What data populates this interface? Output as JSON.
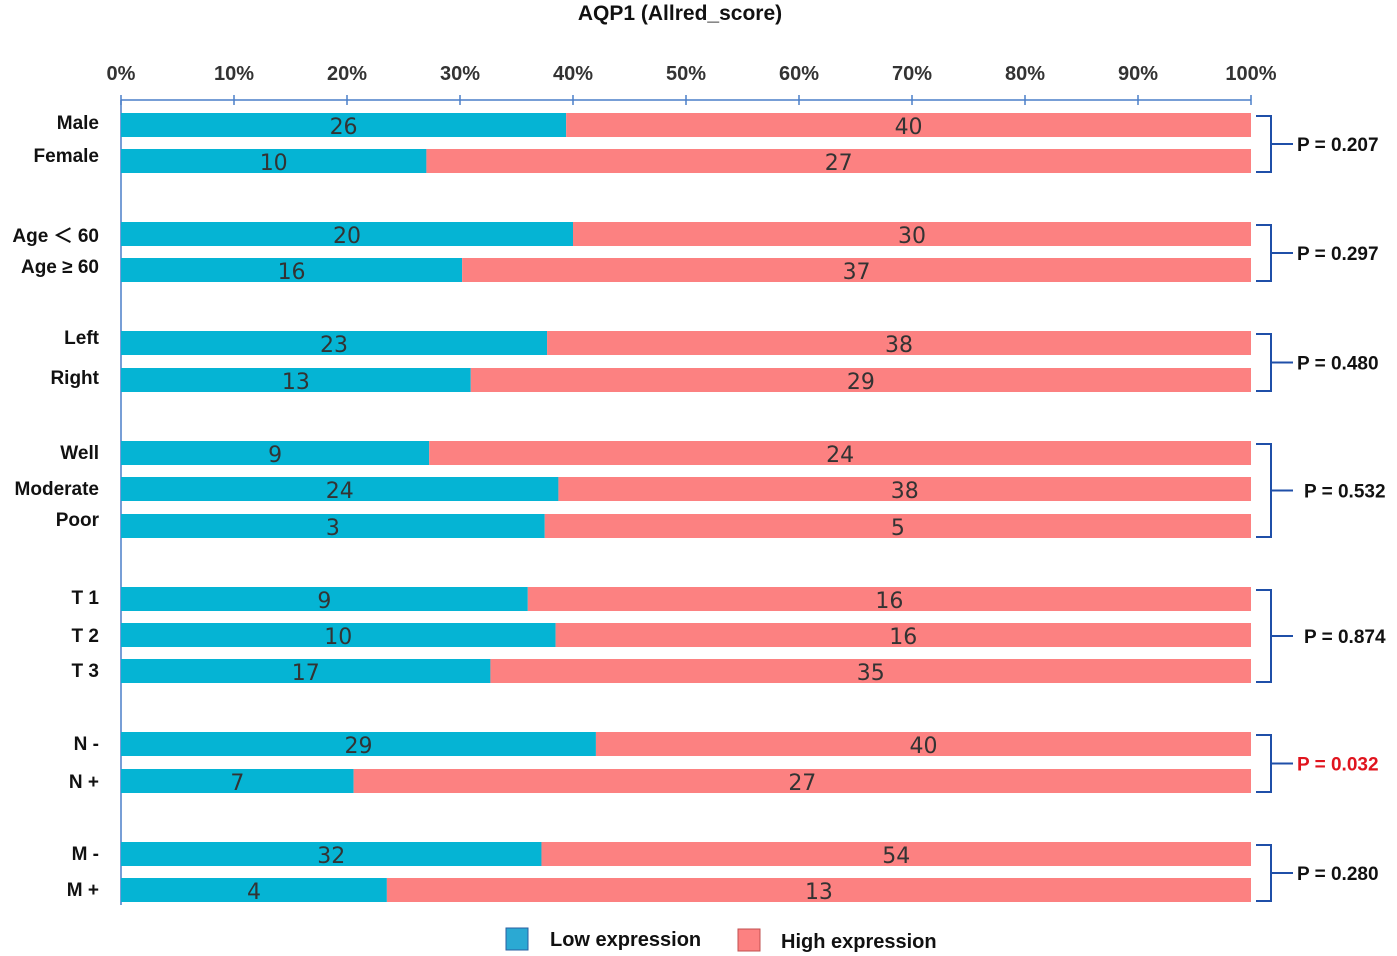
{
  "chart_data": {
    "type": "bar",
    "orientation": "horizontal",
    "stacked": "percent",
    "title": "AQP1 (Allred_score)",
    "x_ticks": [
      "0%",
      "10%",
      "20%",
      "30%",
      "40%",
      "50%",
      "60%",
      "70%",
      "80%",
      "90%",
      "100%"
    ],
    "xlim": [
      0,
      100
    ],
    "series": [
      {
        "name": "Low expression",
        "color": "#05b4d4"
      },
      {
        "name": "High expression",
        "color": "#fc8181"
      }
    ],
    "groups": [
      {
        "p_value": "P = 0.207",
        "significant": false,
        "rows": [
          {
            "label": "Male",
            "low": 26,
            "high": 40
          },
          {
            "label": "Female",
            "low": 10,
            "high": 27
          }
        ]
      },
      {
        "p_value": "P = 0.297",
        "significant": false,
        "rows": [
          {
            "label": "Age ＜ 60",
            "low": 20,
            "high": 30
          },
          {
            "label": "Age ≥ 60",
            "low": 16,
            "high": 37
          }
        ]
      },
      {
        "p_value": "P = 0.480",
        "significant": false,
        "rows": [
          {
            "label": "Left",
            "low": 23,
            "high": 38
          },
          {
            "label": "Right",
            "low": 13,
            "high": 29
          }
        ]
      },
      {
        "p_value": "P = 0.532",
        "significant": false,
        "rows": [
          {
            "label": "Well",
            "low": 9,
            "high": 24
          },
          {
            "label": "Moderate",
            "low": 24,
            "high": 38
          },
          {
            "label": "Poor",
            "low": 3,
            "high": 5
          }
        ]
      },
      {
        "p_value": "P = 0.874",
        "significant": false,
        "rows": [
          {
            "label": "T 1",
            "low": 9,
            "high": 16
          },
          {
            "label": "T 2",
            "low": 10,
            "high": 16
          },
          {
            "label": "T 3",
            "low": 17,
            "high": 35
          }
        ]
      },
      {
        "p_value": "P = 0.032",
        "significant": true,
        "rows": [
          {
            "label": "N -",
            "low": 29,
            "high": 40
          },
          {
            "label": "N +",
            "low": 7,
            "high": 27
          }
        ]
      },
      {
        "p_value": "P = 0.280",
        "significant": false,
        "rows": [
          {
            "label": "M -",
            "low": 32,
            "high": 54
          },
          {
            "label": "M +",
            "low": 4,
            "high": 13
          }
        ]
      }
    ],
    "legend": {
      "position": "bottom-center",
      "labels": [
        "Low expression",
        "High expression"
      ]
    },
    "colors": {
      "axis": "#4a7fc8",
      "bracket": "#1f4fa8",
      "significant": "#e0141e",
      "normal": "#111111"
    }
  }
}
